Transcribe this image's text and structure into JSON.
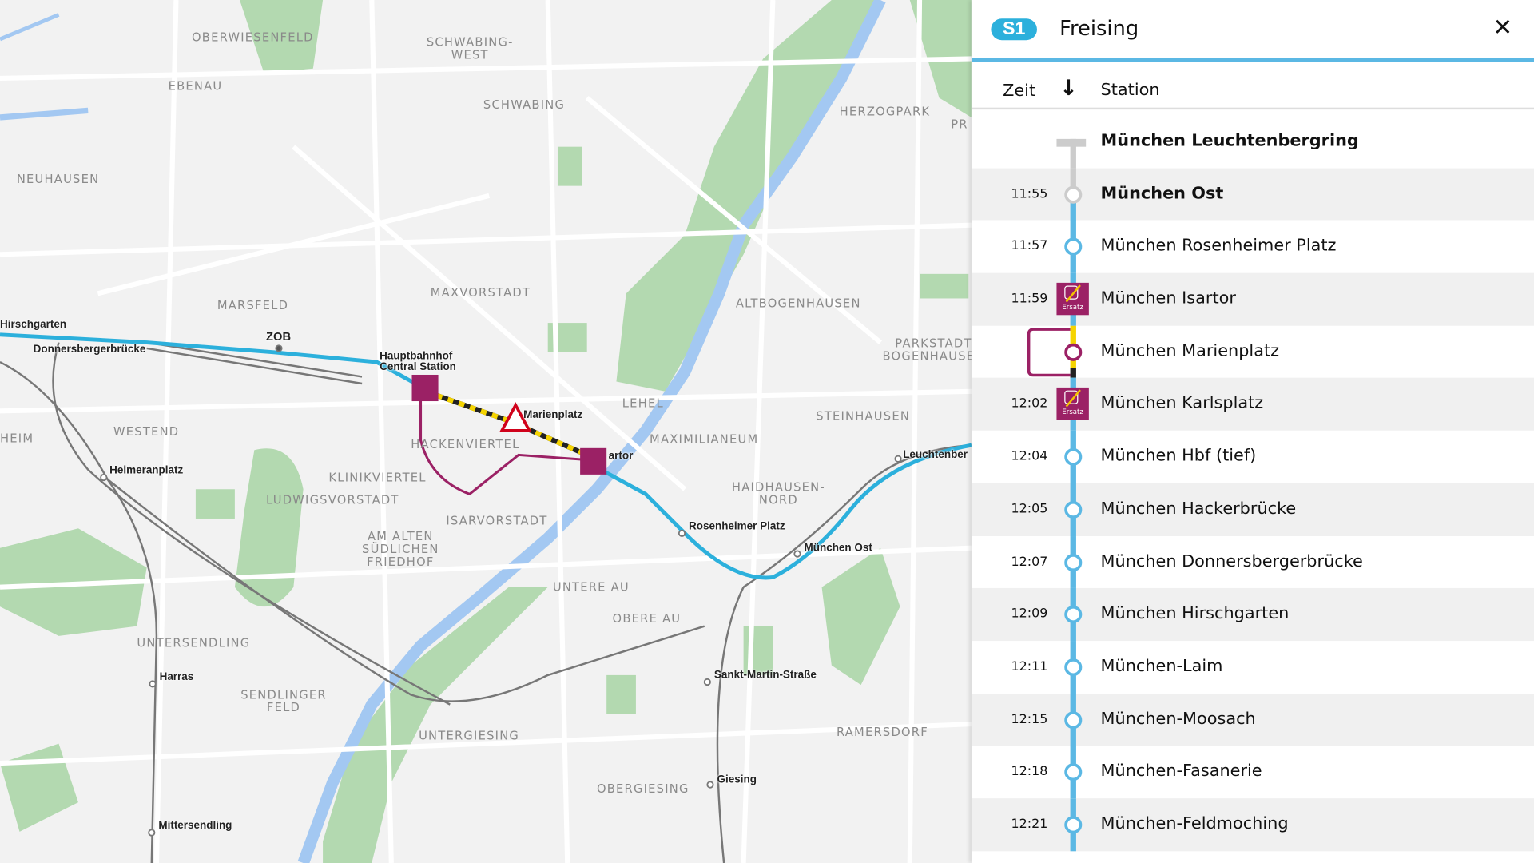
{
  "colors": {
    "s1": "#2cb0dc",
    "line": "#5bb8e4",
    "replacement": "#9b2165",
    "construction": "#f5d400",
    "park": "#b3d9b0",
    "water": "#a3c8f2"
  },
  "panel": {
    "line_badge": "S1",
    "destination": "Freising",
    "close_icon": "close-icon",
    "columns": {
      "time": "Zeit",
      "sort_icon": "arrow-down-icon",
      "station": "Station"
    },
    "replacement_label": "Ersatz",
    "stops": [
      {
        "time": "",
        "name": "München Leuchtenbergring",
        "bold": true,
        "state": "past-terminus"
      },
      {
        "time": "11:55",
        "name": "München Ost",
        "bold": true,
        "state": "current"
      },
      {
        "time": "11:57",
        "name": "München Rosenheimer Platz"
      },
      {
        "time": "11:59",
        "name": "München Isartor",
        "replacement": true
      },
      {
        "time": "",
        "name": "München Marienplatz",
        "skipped": true
      },
      {
        "time": "12:02",
        "name": "München Karlsplatz",
        "replacement": true
      },
      {
        "time": "12:04",
        "name": "München Hbf (tief)"
      },
      {
        "time": "12:05",
        "name": "München Hackerbrücke"
      },
      {
        "time": "12:07",
        "name": "München Donnersbergerbrücke"
      },
      {
        "time": "12:09",
        "name": "München Hirschgarten"
      },
      {
        "time": "12:11",
        "name": "München-Laim"
      },
      {
        "time": "12:15",
        "name": "München-Moosach"
      },
      {
        "time": "12:18",
        "name": "München-Fasanerie"
      },
      {
        "time": "12:21",
        "name": "München-Feldmoching"
      }
    ]
  },
  "map": {
    "districts": [
      "OBERWIESENFELD",
      "SCHWABING-\nWEST",
      "EBENAU",
      "SCHWABING",
      "NEUHAUSEN",
      "HERZOGPARK",
      "MAXVORSTADT",
      "MARSFELD",
      "ALTBOGENHAUSEN",
      "PARKSTADT\nBOGENHAUSEN",
      "LEHEL",
      "WESTEND",
      "HACKENVIERTEL",
      "MAXIMILIANEUM",
      "STEINHAUSEN",
      "KLINIKVIERTEL",
      "LUDWIGSVORSTADT",
      "HAIDHAUSEN-\nNORD",
      "ISARVORSTADT",
      "AM ALTEN\nSÜDLICHEN\nFRIEDHOF",
      "UNTERE AU",
      "OBERE AU",
      "UNTERSENDLING",
      "SENDLINGER\nFELD",
      "UNTERGIESING",
      "RAMERSDORF",
      "OBERGIESING",
      "HEIM",
      "PR"
    ],
    "stations": [
      "Hirschgarten",
      "Donnersbergerbrücke",
      "ZOB",
      "Hauptbahnhof\nCentral Station",
      "Marienplatz",
      "artor",
      "Rosenheimer Platz",
      "München Ost",
      "Leuchtenber",
      "Heimeranplatz",
      "Harras",
      "Sankt-Martin-Straße",
      "Giesing",
      "Mittersendling"
    ]
  }
}
